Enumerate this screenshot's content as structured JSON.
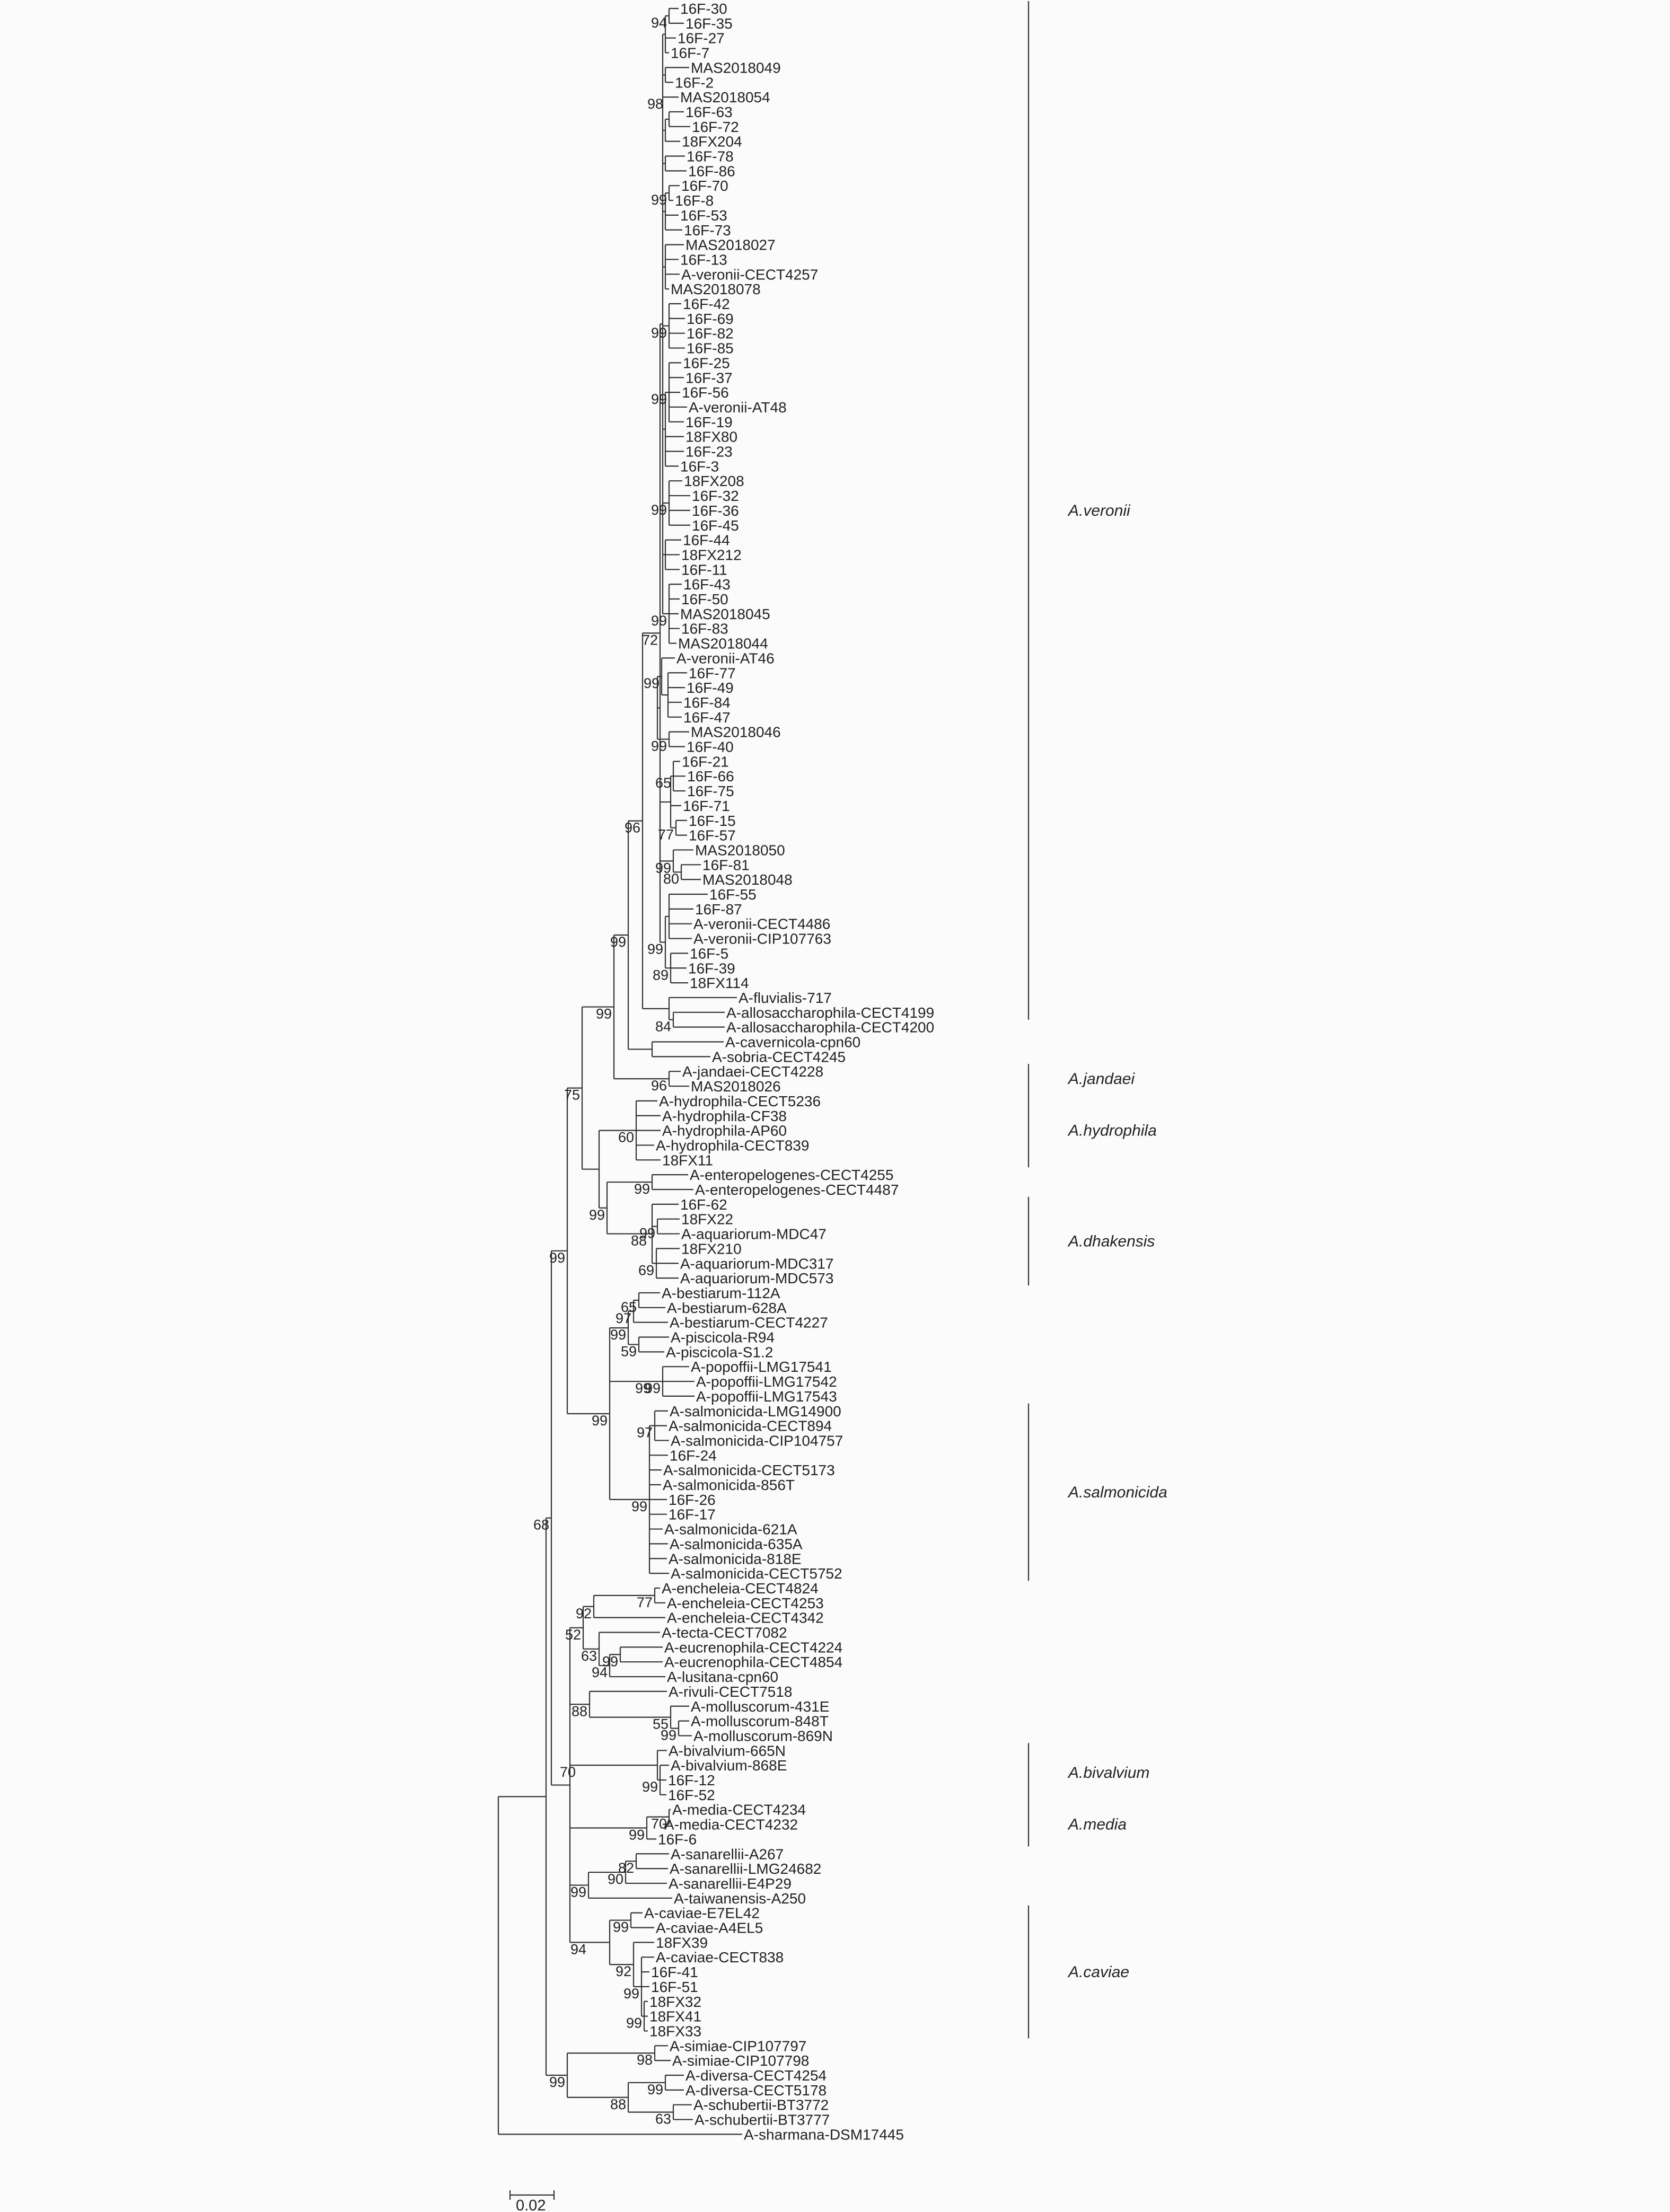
{
  "taxa": [
    "16F-30",
    "16F-35",
    "16F-27",
    "16F-7",
    "MAS2018049",
    "16F-2",
    "MAS2018054",
    "16F-63",
    "16F-72",
    "18FX204",
    "16F-78",
    "16F-86",
    "16F-70",
    "16F-8",
    "16F-53",
    "16F-73",
    "MAS2018027",
    "16F-13",
    "A-veronii-CECT4257",
    "MAS2018078",
    "16F-42",
    "16F-69",
    "16F-82",
    "16F-85",
    "16F-25",
    "16F-37",
    "16F-56",
    "A-veronii-AT48",
    "16F-19",
    "18FX80",
    "16F-23",
    "16F-3",
    "18FX208",
    "16F-32",
    "16F-36",
    "16F-45",
    "16F-44",
    "18FX212",
    "16F-11",
    "16F-43",
    "16F-50",
    "MAS2018045",
    "16F-83",
    "MAS2018044",
    "A-veronii-AT46",
    "16F-77",
    "16F-49",
    "16F-84",
    "16F-47",
    "MAS2018046",
    "16F-40",
    "16F-21",
    "16F-66",
    "16F-75",
    "16F-71",
    "16F-15",
    "16F-57",
    "MAS2018050",
    "16F-81",
    "MAS2018048",
    "16F-55",
    "16F-87",
    "A-veronii-CECT4486",
    "A-veronii-CIP107763",
    "16F-5",
    "16F-39",
    "18FX114",
    "A-fluvialis-717",
    "A-allosaccharophila-CECT4199",
    "A-allosaccharophila-CECT4200",
    "A-cavernicola-cpn60",
    "A-sobria-CECT4245",
    "A-jandaei-CECT4228",
    "MAS2018026",
    "A-hydrophila-CECT5236",
    "A-hydrophila-CF38",
    "A-hydrophila-AP60",
    "A-hydrophila-CECT839",
    "18FX11",
    "A-enteropelogenes-CECT4255",
    "A-enteropelogenes-CECT4487",
    "16F-62",
    "18FX22",
    "A-aquariorum-MDC47",
    "18FX210",
    "A-aquariorum-MDC317",
    "A-aquariorum-MDC573",
    "A-bestiarum-112A",
    "A-bestiarum-628A",
    "A-bestiarum-CECT4227",
    "A-piscicola-R94",
    "A-piscicola-S1.2",
    "A-popoffii-LMG17541",
    "A-popoffii-LMG17542",
    "A-popoffii-LMG17543",
    "A-salmonicida-LMG14900",
    "A-salmonicida-CECT894",
    "A-salmonicida-CIP104757",
    "16F-24",
    "A-salmonicida-CECT5173",
    "A-salmonicida-856T",
    "16F-26",
    "16F-17",
    "A-salmonicida-621A",
    "A-salmonicida-635A",
    "A-salmonicida-818E",
    "A-salmonicida-CECT5752",
    "A-encheleia-CECT4824",
    "A-encheleia-CECT4253",
    "A-encheleia-CECT4342",
    "A-tecta-CECT7082",
    "A-eucrenophila-CECT4224",
    "A-eucrenophila-CECT4854",
    "A-lusitana-cpn60",
    "A-rivuli-CECT7518",
    "A-molluscorum-431E",
    "A-molluscorum-848T",
    "A-molluscorum-869N",
    "A-bivalvium-665N",
    "A-bivalvium-868E",
    "16F-12",
    "16F-52",
    "A-media-CECT4234",
    "A-media-CECT4232",
    "16F-6",
    "A-sanarellii-A267",
    "A-sanarellii-LMG24682",
    "A-sanarellii-E4P29",
    "A-taiwanensis-A250",
    "A-caviae-E7EL42",
    "A-caviae-A4EL5",
    "18FX39",
    "A-caviae-CECT838",
    "16F-41",
    "16F-51",
    "18FX32",
    "18FX41",
    "18FX33",
    "A-simiae-CIP107797",
    "A-simiae-CIP107798",
    "A-diversa-CECT4254",
    "A-diversa-CECT5178",
    "A-schubertii-BT3772",
    "A-schubertii-BT3777",
    "A-sharmana-DSM17445"
  ],
  "bootstrap": [
    "94",
    "98",
    "99",
    "99",
    "99",
    "99",
    "99",
    "99",
    "99",
    "65",
    "77",
    "80",
    "99",
    "89",
    "99",
    "72",
    "84",
    "96",
    "99",
    "96",
    "99",
    "60",
    "99",
    "99",
    "69",
    "88",
    "99",
    "75",
    "65",
    "97",
    "59",
    "99",
    "99",
    "99",
    "97",
    "99",
    "99",
    "99",
    "77",
    "92",
    "99",
    "94",
    "63",
    "52",
    "99",
    "55",
    "88",
    "99",
    "70",
    "70",
    "99",
    "82",
    "90",
    "99",
    "99",
    "99",
    "99",
    "92",
    "94",
    "68",
    "98",
    "99",
    "63",
    "88",
    "99",
    "99",
    "80",
    "99",
    "99",
    "99"
  ],
  "clades": [
    "A.veronii",
    "A.jandaei",
    "A.hydrophila",
    "A.dhakensis",
    "A.salmonicida",
    "A.bivalvium",
    "A.media",
    "A.caviae"
  ],
  "scale_bar": {
    "label": "0.02"
  },
  "colors": {
    "line": "#333333",
    "text": "#222222",
    "background": "#fbfbfb"
  }
}
